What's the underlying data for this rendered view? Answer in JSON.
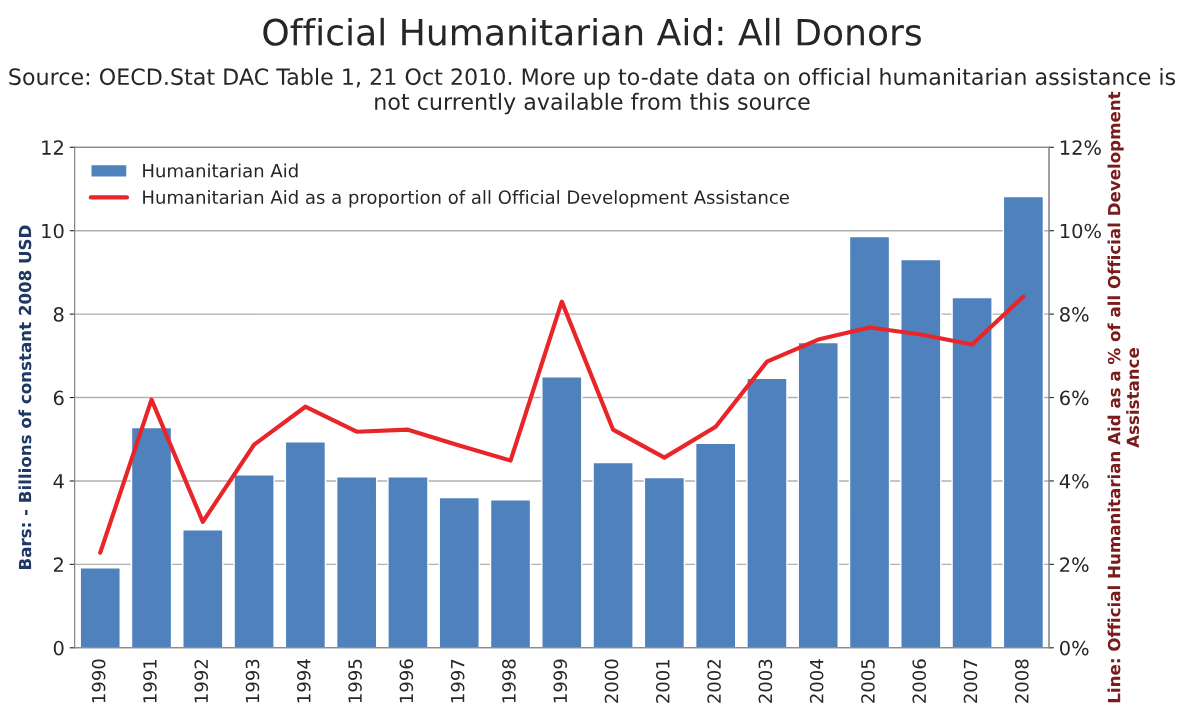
{
  "chart_data": {
    "type": "bar",
    "title": "Official Humanitarian Aid: All Donors",
    "subtitle": "Source: OECD.Stat DAC Table 1, 21 Oct 2010. More up to-date data on official humanitarian assistance is not currently available from this source",
    "ylabel": "Bars: - Billions of constant 2008 USD",
    "y2label": "Line: Official Humanitarian Aid as a % of all Official Development Assistance",
    "categories": [
      "1990",
      "1991",
      "1992",
      "1993",
      "1994",
      "1995",
      "1996",
      "1997",
      "1998",
      "1999",
      "2000",
      "2001",
      "2002",
      "2003",
      "2004",
      "2005",
      "2006",
      "2007",
      "2008"
    ],
    "series": [
      {
        "name": "Humanitarian Aid",
        "color": "#4f81bd",
        "values": [
          1.92,
          5.28,
          2.83,
          4.15,
          4.94,
          4.1,
          4.1,
          3.6,
          3.55,
          6.5,
          4.44,
          4.08,
          4.9,
          6.46,
          7.32,
          9.86,
          9.31,
          8.4,
          10.82
        ]
      },
      {
        "name": "Humanitarian Aid as a proportion of all Official Development Assistance",
        "type": "line",
        "axis": "y2",
        "color": "#e8262a",
        "values": [
          2.28,
          5.95,
          3.02,
          4.87,
          5.78,
          5.18,
          5.23,
          4.85,
          4.49,
          8.3,
          5.23,
          4.56,
          5.3,
          6.86,
          7.39,
          7.68,
          7.51,
          7.27,
          8.42
        ]
      }
    ],
    "ylim": [
      0,
      12
    ],
    "yticks": [
      0,
      2,
      4,
      6,
      8,
      10,
      12
    ],
    "y2lim": [
      0,
      12
    ],
    "y2ticks": [
      {
        "value": 0,
        "label": "0%"
      },
      {
        "value": 2,
        "label": "2%"
      },
      {
        "value": 4,
        "label": "4%"
      },
      {
        "value": 6,
        "label": "6%"
      },
      {
        "value": 8,
        "label": "8%"
      },
      {
        "value": 10,
        "label": "10%"
      },
      {
        "value": 12,
        "label": "12%"
      }
    ],
    "grid": "y",
    "legend": "top left",
    "marker": "none",
    "line_style": "solid"
  }
}
